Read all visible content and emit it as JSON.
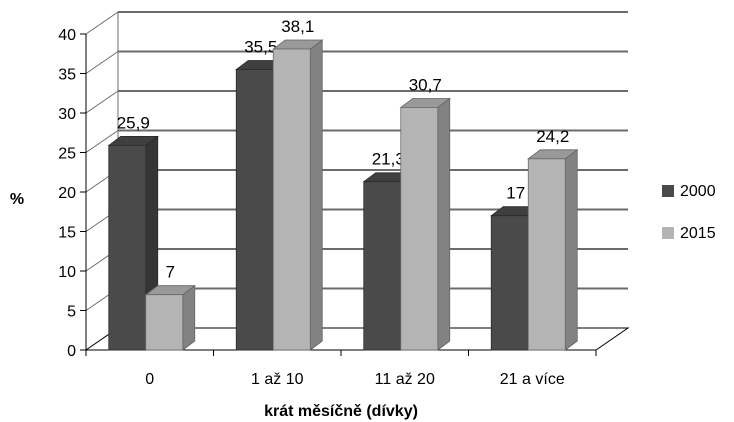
{
  "chart_data": {
    "type": "bar",
    "categories": [
      "0",
      "1 až 10",
      "11 až 20",
      "21 a více"
    ],
    "series": [
      {
        "name": "2000",
        "values": [
          25.9,
          35.5,
          21.3,
          17
        ],
        "labels": [
          "25,9",
          "35,5",
          "21,3",
          "17"
        ],
        "color": "#4a4a4a"
      },
      {
        "name": "2015",
        "values": [
          7,
          38.1,
          30.7,
          24.2
        ],
        "labels": [
          "7",
          "38,1",
          "30,7",
          "24,2"
        ],
        "color": "#b4b4b4"
      }
    ],
    "yticks": [
      "0",
      "5",
      "10",
      "15",
      "20",
      "25",
      "30",
      "35",
      "40"
    ],
    "ylim": [
      0,
      40
    ],
    "xlabel": "krát měsíčně (dívky)",
    "ylabel": "%",
    "grid": true,
    "legend_position": "right"
  }
}
